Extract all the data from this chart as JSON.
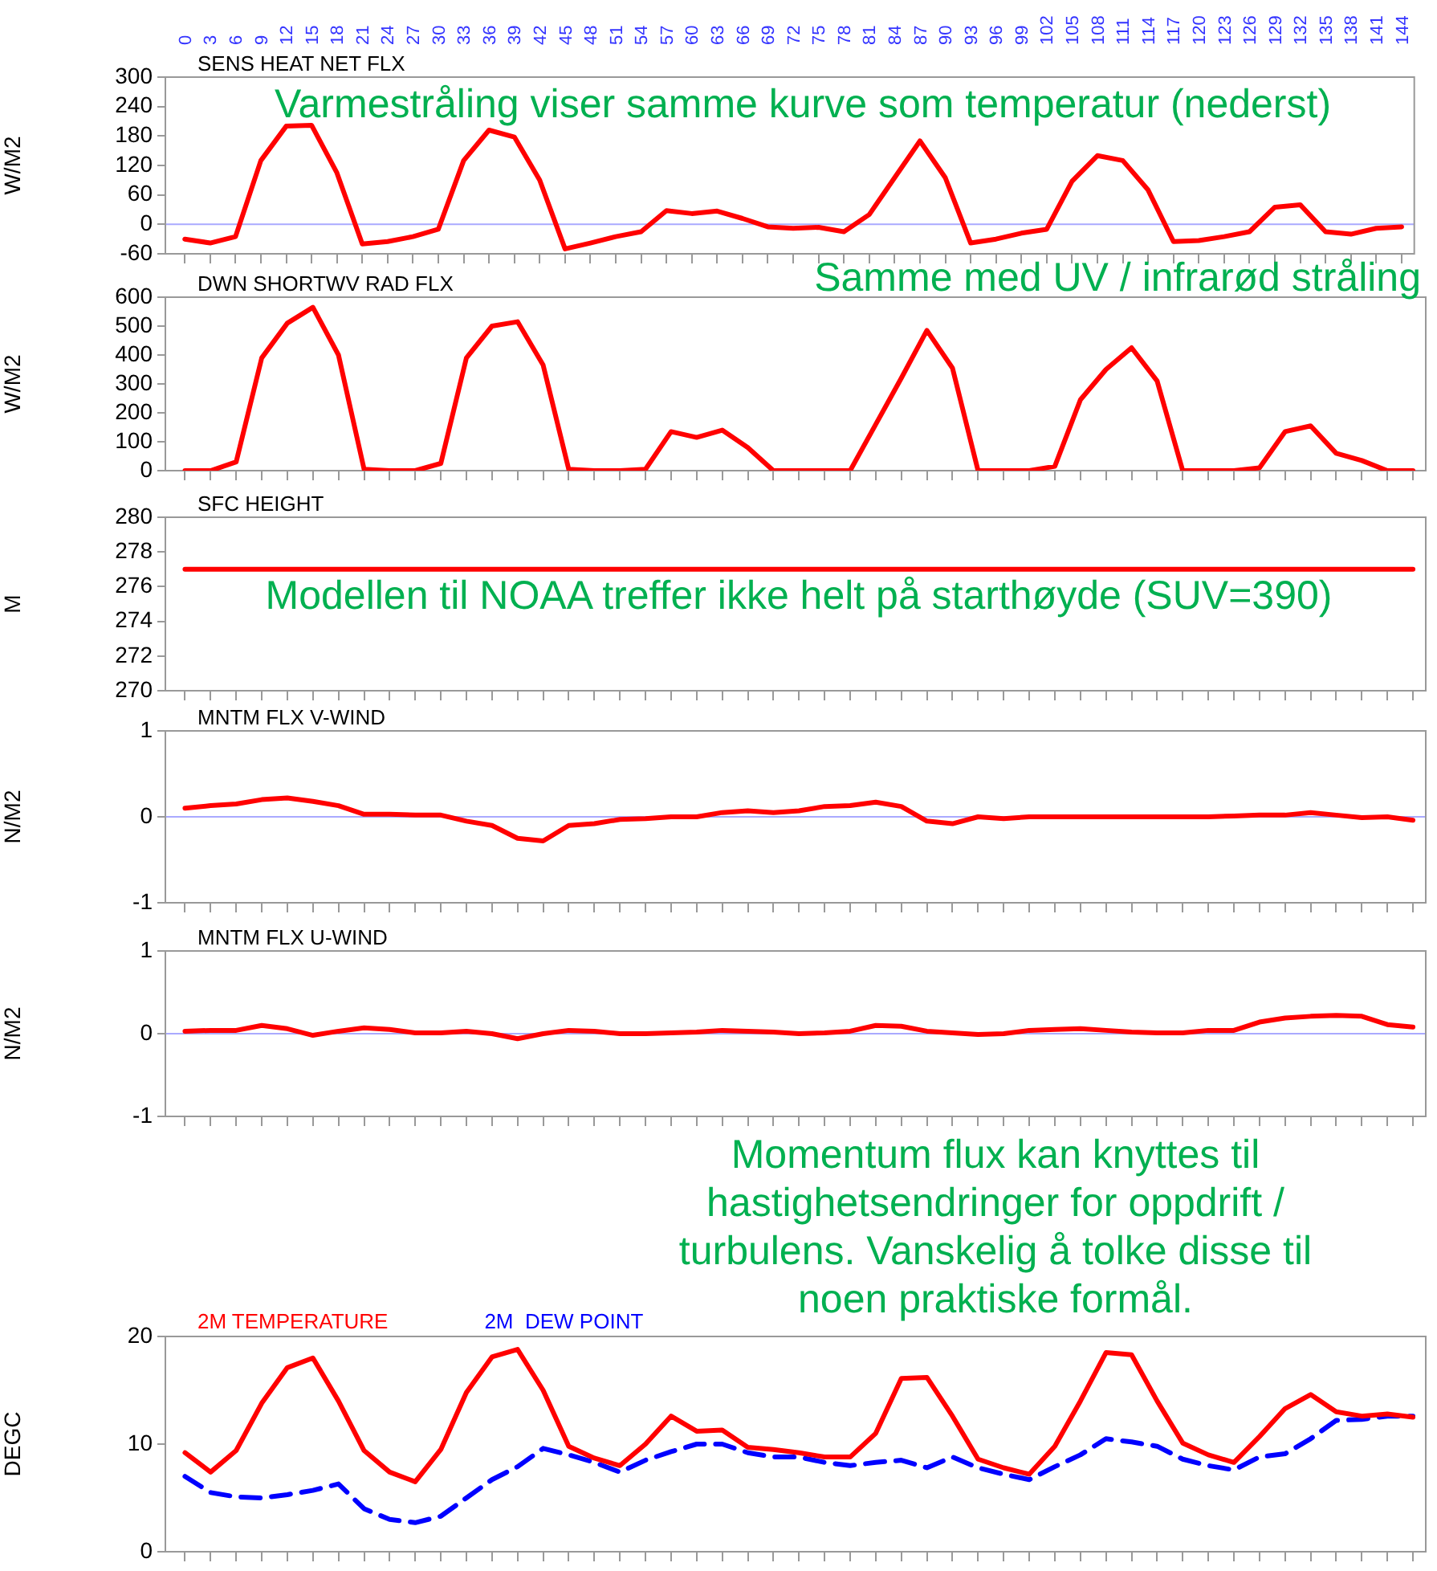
{
  "chart_data": [
    {
      "type": "line",
      "title": "SENS HEAT NET FLX",
      "ylabel": "W/M2",
      "annotations": [
        "Varmestråling viser samme kurve som temperatur (nederst)"
      ],
      "x": [
        0,
        3,
        6,
        9,
        12,
        15,
        18,
        21,
        24,
        27,
        30,
        33,
        36,
        39,
        42,
        45,
        48,
        51,
        54,
        57,
        60,
        63,
        66,
        69,
        72,
        75,
        78,
        81,
        84,
        87,
        90,
        93,
        96,
        99,
        102,
        105,
        108,
        111,
        114,
        117,
        120,
        123,
        126,
        129,
        132,
        135,
        138,
        141,
        144
      ],
      "xlim": [
        -2.3,
        145.5
      ],
      "xticks": [
        0,
        3,
        6,
        9,
        12,
        15,
        18,
        21,
        24,
        27,
        30,
        33,
        36,
        39,
        42,
        45,
        48,
        51,
        54,
        57,
        60,
        63,
        66,
        69,
        72,
        75,
        78,
        81,
        84,
        87,
        90,
        93,
        96,
        99,
        102,
        105,
        108,
        111,
        114,
        117,
        120,
        123,
        126,
        129,
        132,
        135,
        138,
        141,
        144
      ],
      "ylim": [
        -60,
        300
      ],
      "yticks": [
        -60,
        0,
        60,
        120,
        180,
        240,
        300
      ],
      "marker": "none",
      "ref_lines": [
        {
          "axis": "y",
          "value": 0,
          "color": "#aaaaff"
        }
      ],
      "series": [
        {
          "color": "#ff0000",
          "values": [
            -30,
            -38,
            -25,
            130,
            200,
            202,
            105,
            -40,
            -35,
            -25,
            -10,
            130,
            192,
            178,
            90,
            -50,
            -38,
            -25,
            -15,
            28,
            22,
            27,
            12,
            -5,
            -8,
            -6,
            -15,
            20,
            95,
            170,
            95,
            -38,
            -30,
            -18,
            -10,
            88,
            140,
            130,
            70,
            -35,
            -33,
            -25,
            -15,
            35,
            40,
            -15,
            -20,
            -8,
            -5
          ]
        }
      ]
    },
    {
      "type": "line",
      "title": "DWN SHORTWV RAD FLX",
      "ylabel": "W/M2",
      "annotations": [
        "Samme med UV / infrarød stråling"
      ],
      "x": [
        0,
        3,
        6,
        9,
        12,
        15,
        18,
        21,
        24,
        27,
        30,
        33,
        36,
        39,
        42,
        45,
        48,
        51,
        54,
        57,
        60,
        63,
        66,
        69,
        72,
        75,
        78,
        81,
        84,
        87,
        90,
        93,
        96,
        99,
        102,
        105,
        108,
        111,
        114,
        117,
        120,
        123,
        126,
        129,
        132,
        135,
        138,
        141,
        144
      ],
      "xlim": [
        -2.3,
        145.5
      ],
      "xticks": [
        0,
        3,
        6,
        9,
        12,
        15,
        18,
        21,
        24,
        27,
        30,
        33,
        36,
        39,
        42,
        45,
        48,
        51,
        54,
        57,
        60,
        63,
        66,
        69,
        72,
        75,
        78,
        81,
        84,
        87,
        90,
        93,
        96,
        99,
        102,
        105,
        108,
        111,
        114,
        117,
        120,
        123,
        126,
        129,
        132,
        135,
        138,
        141,
        144
      ],
      "ylim": [
        0,
        600
      ],
      "yticks": [
        0,
        100,
        200,
        300,
        400,
        500,
        600
      ],
      "tick_labels": "y",
      "marker": "none",
      "series": [
        {
          "color": "#ff0000",
          "values": [
            0,
            0,
            30,
            390,
            510,
            565,
            400,
            5,
            0,
            0,
            25,
            390,
            500,
            515,
            365,
            5,
            0,
            0,
            5,
            135,
            115,
            140,
            80,
            0,
            0,
            0,
            0,
            160,
            320,
            485,
            355,
            0,
            0,
            0,
            15,
            245,
            350,
            425,
            310,
            0,
            0,
            0,
            10,
            135,
            155,
            60,
            35,
            0,
            0
          ]
        }
      ]
    },
    {
      "type": "line",
      "title": "SFC HEIGHT",
      "ylabel": "M",
      "annotations": [
        "Modellen til NOAA treffer ikke helt på starthøyde (SUV=390)"
      ],
      "x": [
        0,
        3,
        6,
        9,
        12,
        15,
        18,
        21,
        24,
        27,
        30,
        33,
        36,
        39,
        42,
        45,
        48,
        51,
        54,
        57,
        60,
        63,
        66,
        69,
        72,
        75,
        78,
        81,
        84,
        87,
        90,
        93,
        96,
        99,
        102,
        105,
        108,
        111,
        114,
        117,
        120,
        123,
        126,
        129,
        132,
        135,
        138,
        141,
        144
      ],
      "xlim": [
        -2.3,
        145.5
      ],
      "xticks": [
        0,
        3,
        6,
        9,
        12,
        15,
        18,
        21,
        24,
        27,
        30,
        33,
        36,
        39,
        42,
        45,
        48,
        51,
        54,
        57,
        60,
        63,
        66,
        69,
        72,
        75,
        78,
        81,
        84,
        87,
        90,
        93,
        96,
        99,
        102,
        105,
        108,
        111,
        114,
        117,
        120,
        123,
        126,
        129,
        132,
        135,
        138,
        141,
        144
      ],
      "ylim": [
        270,
        280
      ],
      "yticks": [
        270,
        272,
        274,
        276,
        278,
        280
      ],
      "tick_labels": "y",
      "marker": "none",
      "series": [
        {
          "color": "#ff0000",
          "values": [
            277,
            277,
            277,
            277,
            277,
            277,
            277,
            277,
            277,
            277,
            277,
            277,
            277,
            277,
            277,
            277,
            277,
            277,
            277,
            277,
            277,
            277,
            277,
            277,
            277,
            277,
            277,
            277,
            277,
            277,
            277,
            277,
            277,
            277,
            277,
            277,
            277,
            277,
            277,
            277,
            277,
            277,
            277,
            277,
            277,
            277,
            277,
            277,
            277
          ]
        }
      ]
    },
    {
      "type": "line",
      "title": "MNTM FLX V-WIND",
      "ylabel": "N/M2",
      "annotations": [
        "Momentum flux kan knyttes til hastighetsendringer for oppdrift / turbulens. Vanskelig å tolke disse til noen praktiske formål."
      ],
      "x": [
        0,
        3,
        6,
        9,
        12,
        15,
        18,
        21,
        24,
        27,
        30,
        33,
        36,
        39,
        42,
        45,
        48,
        51,
        54,
        57,
        60,
        63,
        66,
        69,
        72,
        75,
        78,
        81,
        84,
        87,
        90,
        93,
        96,
        99,
        102,
        105,
        108,
        111,
        114,
        117,
        120,
        123,
        126,
        129,
        132,
        135,
        138,
        141,
        144
      ],
      "xlim": [
        -2.3,
        145.5
      ],
      "xticks": [
        0,
        3,
        6,
        9,
        12,
        15,
        18,
        21,
        24,
        27,
        30,
        33,
        36,
        39,
        42,
        45,
        48,
        51,
        54,
        57,
        60,
        63,
        66,
        69,
        72,
        75,
        78,
        81,
        84,
        87,
        90,
        93,
        96,
        99,
        102,
        105,
        108,
        111,
        114,
        117,
        120,
        123,
        126,
        129,
        132,
        135,
        138,
        141,
        144
      ],
      "ylim": [
        -1,
        1
      ],
      "yticks": [
        -1,
        0,
        1
      ],
      "tick_labels": "y",
      "marker": "none",
      "ref_lines": [
        {
          "axis": "y",
          "value": 0,
          "color": "#aaaaff"
        }
      ],
      "series": [
        {
          "color": "#ff0000",
          "values": [
            0.1,
            0.13,
            0.15,
            0.2,
            0.22,
            0.18,
            0.13,
            0.03,
            0.03,
            0.02,
            0.02,
            -0.05,
            -0.1,
            -0.25,
            -0.28,
            -0.1,
            -0.08,
            -0.03,
            -0.02,
            0,
            0,
            0.05,
            0.07,
            0.05,
            0.07,
            0.12,
            0.13,
            0.17,
            0.12,
            -0.05,
            -0.08,
            0,
            -0.02,
            0,
            0,
            0,
            0,
            0,
            0,
            0,
            0,
            0.01,
            0.02,
            0.02,
            0.05,
            0.02,
            -0.01,
            0,
            -0.04
          ]
        }
      ]
    },
    {
      "type": "line",
      "title": "MNTM FLX U-WIND",
      "ylabel": "N/M2",
      "x": [
        0,
        3,
        6,
        9,
        12,
        15,
        18,
        21,
        24,
        27,
        30,
        33,
        36,
        39,
        42,
        45,
        48,
        51,
        54,
        57,
        60,
        63,
        66,
        69,
        72,
        75,
        78,
        81,
        84,
        87,
        90,
        93,
        96,
        99,
        102,
        105,
        108,
        111,
        114,
        117,
        120,
        123,
        126,
        129,
        132,
        135,
        138,
        141,
        144
      ],
      "xlim": [
        -2.3,
        145.5
      ],
      "xticks": [
        0,
        3,
        6,
        9,
        12,
        15,
        18,
        21,
        24,
        27,
        30,
        33,
        36,
        39,
        42,
        45,
        48,
        51,
        54,
        57,
        60,
        63,
        66,
        69,
        72,
        75,
        78,
        81,
        84,
        87,
        90,
        93,
        96,
        99,
        102,
        105,
        108,
        111,
        114,
        117,
        120,
        123,
        126,
        129,
        132,
        135,
        138,
        141,
        144
      ],
      "ylim": [
        -1,
        1
      ],
      "yticks": [
        -1,
        0,
        1
      ],
      "tick_labels": "y",
      "marker": "none",
      "ref_lines": [
        {
          "axis": "y",
          "value": 0,
          "color": "#aaaaff"
        }
      ],
      "series": [
        {
          "color": "#ff0000",
          "values": [
            0.03,
            0.04,
            0.04,
            0.1,
            0.06,
            -0.02,
            0.03,
            0.07,
            0.05,
            0.01,
            0.01,
            0.03,
            0,
            -0.06,
            0,
            0.04,
            0.03,
            0,
            0,
            0.01,
            0.02,
            0.04,
            0.03,
            0.02,
            0,
            0.01,
            0.03,
            0.1,
            0.09,
            0.03,
            0.01,
            -0.01,
            0,
            0.04,
            0.05,
            0.06,
            0.04,
            0.02,
            0.01,
            0.01,
            0.04,
            0.04,
            0.14,
            0.19,
            0.21,
            0.22,
            0.21,
            0.11,
            0.08
          ]
        }
      ]
    },
    {
      "type": "line",
      "ylabel": "DEGC",
      "legend": "top left",
      "x": [
        0,
        3,
        6,
        9,
        12,
        15,
        18,
        21,
        24,
        27,
        30,
        33,
        36,
        39,
        42,
        45,
        48,
        51,
        54,
        57,
        60,
        63,
        66,
        69,
        72,
        75,
        78,
        81,
        84,
        87,
        90,
        93,
        96,
        99,
        102,
        105,
        108,
        111,
        114,
        117,
        120,
        123,
        126,
        129,
        132,
        135,
        138,
        141,
        144
      ],
      "xlim": [
        -2.3,
        145.5
      ],
      "xticks": [
        0,
        3,
        6,
        9,
        12,
        15,
        18,
        21,
        24,
        27,
        30,
        33,
        36,
        39,
        42,
        45,
        48,
        51,
        54,
        57,
        60,
        63,
        66,
        69,
        72,
        75,
        78,
        81,
        84,
        87,
        90,
        93,
        96,
        99,
        102,
        105,
        108,
        111,
        114,
        117,
        120,
        123,
        126,
        129,
        132,
        135,
        138,
        141,
        144
      ],
      "ylim": [
        0,
        20
      ],
      "yticks": [
        0,
        10,
        20
      ],
      "tick_labels": "y",
      "marker": "none",
      "series": [
        {
          "name": "2M TEMPERATURE",
          "color": "#ff0000",
          "line_style": "solid",
          "values": [
            9.2,
            7.4,
            9.4,
            13.8,
            17.1,
            18,
            14,
            9.4,
            7.4,
            6.5,
            9.5,
            14.8,
            18.1,
            18.8,
            15,
            9.8,
            8.7,
            8,
            10,
            12.6,
            11.2,
            11.3,
            9.7,
            9.5,
            9.2,
            8.8,
            8.8,
            11,
            16.1,
            16.2,
            12.6,
            8.6,
            7.8,
            7.2,
            9.8,
            14,
            18.5,
            18.3,
            14,
            10.1,
            9,
            8.3,
            10.7,
            13.3,
            14.6,
            13,
            12.6,
            12.8,
            12.5
          ]
        },
        {
          "name": "2M  DEW POINT",
          "color": "#0000ff",
          "line_style": "dashed",
          "values": [
            7,
            5.5,
            5.1,
            5,
            5.3,
            5.7,
            6.3,
            4,
            3,
            2.7,
            3.3,
            5,
            6.7,
            7.9,
            9.6,
            9,
            8.3,
            7.4,
            8.5,
            9.3,
            10,
            10,
            9.2,
            8.8,
            8.8,
            8.3,
            8,
            8.3,
            8.5,
            7.8,
            8.8,
            7.8,
            7.2,
            6.7,
            7.9,
            9,
            10.5,
            10.2,
            9.8,
            8.6,
            8,
            7.6,
            8.8,
            9.1,
            10.5,
            12.2,
            12.3,
            12.6,
            12.6
          ]
        }
      ]
    }
  ]
}
